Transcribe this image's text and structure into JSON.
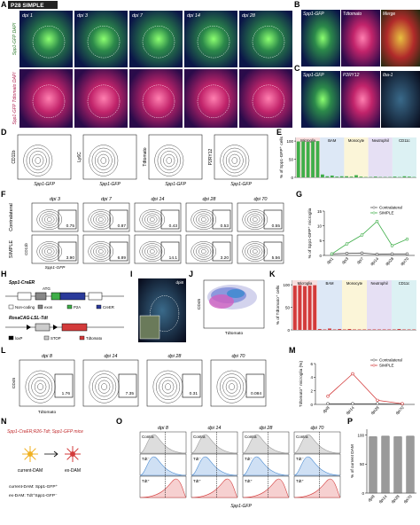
{
  "panels": {
    "A": {
      "label": "A",
      "title": "P28 SIMPLE",
      "columns": [
        "dpi 1",
        "dpi 3",
        "dpi 7",
        "dpi 14",
        "dpi 28"
      ],
      "rows": [
        "Spp1-GFP DAPI",
        "Spp1-GFP Tdtomato DAPI"
      ]
    },
    "B": {
      "label": "B",
      "channels": [
        "Spp1-GFP",
        "Tdtomato",
        "Merge"
      ]
    },
    "C": {
      "label": "C",
      "channels": [
        "Spp1-GFP",
        "P2RY12",
        "Iba-1"
      ]
    },
    "D": {
      "label": "D",
      "plots": [
        {
          "ylabel": "CD11b",
          "xlabel": "Spp1-GFP"
        },
        {
          "ylabel": "Ly6C",
          "xlabel": "Spp1-GFP"
        },
        {
          "ylabel": "Tdtomato",
          "xlabel": "Spp1-GFP"
        },
        {
          "ylabel": "P2RY12",
          "xlabel": "Spp1-GFP"
        }
      ]
    },
    "E": {
      "label": "E",
      "type": "grouped_bar",
      "ylabel": "% of Spp1-GFP⁺ cells",
      "ylim": [
        0,
        110
      ],
      "yticks": [
        0,
        50,
        100
      ],
      "bar_color": "#3fae49",
      "groups": [
        {
          "name": "Microglia",
          "color": "#f7dede",
          "values": [
            99,
            99,
            98,
            99,
            100
          ]
        },
        {
          "name": "BAM",
          "color": "#dde8f6",
          "values": [
            8,
            3,
            5,
            2,
            3
          ]
        },
        {
          "name": "Monocyte",
          "color": "#fbf5d8",
          "values": [
            3,
            2,
            6,
            2,
            1
          ]
        },
        {
          "name": "Neutrophil",
          "color": "#e6e0f4",
          "values": [
            1,
            2,
            1,
            1,
            1
          ]
        },
        {
          "name": "CD11c",
          "color": "#dcf1f3",
          "values": [
            2,
            1,
            3,
            2,
            1
          ]
        }
      ]
    },
    "F": {
      "label": "F",
      "columns": [
        "dpi 3",
        "dpi 7",
        "dpi 14",
        "dpi 28",
        "dpi 70"
      ],
      "rows": [
        "Contralateral",
        "SIMPLE"
      ],
      "gates": [
        [
          "0.75",
          "0.87",
          "0.43",
          "0.53",
          "0.55"
        ],
        [
          "3.90",
          "6.89",
          "14.1",
          "3.20",
          "5.56"
        ]
      ],
      "ylabel": "CD11b",
      "xlabel": "Spp1-GFP"
    },
    "G": {
      "label": "G",
      "type": "line",
      "ylabel": "% of Spp1-GFP⁺ microglia",
      "categories": [
        "dpi1",
        "dpi3",
        "dpi7",
        "dpi14",
        "dpi28",
        "dpi70"
      ],
      "ylim": [
        0,
        15
      ],
      "yticks": [
        0,
        5,
        10,
        15
      ],
      "series": [
        {
          "name": "Contralateral",
          "color": "#555555",
          "values": [
            0.5,
            0.7,
            0.8,
            0.4,
            0.5,
            0.5
          ]
        },
        {
          "name": "SIMPLE",
          "color": "#3fae49",
          "values": [
            0.5,
            3.9,
            6.9,
            11.5,
            3.3,
            5.5
          ]
        }
      ]
    },
    "H": {
      "label": "H",
      "construct1": "Spp1-CreER",
      "atg": "ATG",
      "legend1": [
        "Non-coding",
        "exon",
        "P2A",
        "CreER"
      ],
      "construct2": "RosaCAG-LSL-Tdt",
      "legend2": [
        "loxP",
        "STOP",
        "Tdtomato"
      ]
    },
    "I": {
      "label": "I",
      "tag": "dpi8"
    },
    "J": {
      "label": "J",
      "ylabel": "CD45",
      "xlabel": "Tdtomato"
    },
    "K": {
      "label": "K",
      "type": "grouped_bar",
      "ylabel": "% of Tdtomato⁺ cells",
      "ylim": [
        0,
        110
      ],
      "yticks": [
        0,
        50,
        100
      ],
      "bar_color": "#d33b3b",
      "groups": [
        {
          "name": "Microglia",
          "color": "#f7dede",
          "values": [
            98,
            99,
            97,
            98,
            99
          ]
        },
        {
          "name": "BAM",
          "color": "#dde8f6",
          "values": [
            2,
            1,
            3,
            1,
            2
          ]
        },
        {
          "name": "Monocyte",
          "color": "#fbf5d8",
          "values": [
            1,
            2,
            1,
            1,
            1
          ]
        },
        {
          "name": "Neutrophil",
          "color": "#e6e0f4",
          "values": [
            1,
            1,
            1,
            1,
            1
          ]
        },
        {
          "name": "CD11c",
          "color": "#dcf1f3",
          "values": [
            1,
            2,
            1,
            1,
            1
          ]
        }
      ]
    },
    "L": {
      "label": "L",
      "columns": [
        "dpi 8",
        "dpi 14",
        "dpi 28",
        "dpi 70"
      ],
      "gates": [
        "1.76",
        "7.35",
        "0.31",
        "0.084"
      ],
      "ylabel": "CD45",
      "xlabel": "Tdtomato"
    },
    "M": {
      "label": "M",
      "type": "line",
      "ylabel": "Tdtomato⁺ microglia (%)",
      "categories": [
        "dpi8",
        "dpi14",
        "dpi28",
        "dpi70"
      ],
      "ylim": [
        0,
        6
      ],
      "yticks": [
        0,
        2,
        4,
        6
      ],
      "series": [
        {
          "name": "Contralateral",
          "color": "#555555",
          "values": [
            0.1,
            0.1,
            0.1,
            0.05
          ]
        },
        {
          "name": "SIMPLE",
          "color": "#d33b3b",
          "values": [
            1.2,
            4.5,
            0.6,
            0.1
          ]
        }
      ]
    },
    "N": {
      "label": "N",
      "title": "Spp1-CreER;R26-Tdt; Spp1-GFP mice",
      "cells": [
        "current-DAM",
        "ex-DAM"
      ],
      "definitions": [
        "current-DAM: Spp1-GFP⁺",
        "ex-DAM: Tdt⁺Spp1-GFP⁻"
      ]
    },
    "O": {
      "label": "O",
      "columns": [
        "dpi 8",
        "dpi 14",
        "dpi 28",
        "dpi 70"
      ],
      "rows": [
        "Contra",
        "Tdt⁻",
        "Tdt⁺"
      ],
      "xlabel": "Spp1-GFP"
    },
    "P": {
      "label": "P",
      "type": "bar",
      "ylabel": "% of current DAM",
      "categories": [
        "dpi8",
        "dpi14",
        "dpi28",
        "dpi70"
      ],
      "values": [
        97,
        98,
        97,
        98
      ],
      "color": "#9a9a9a",
      "ylim": [
        0,
        110
      ],
      "yticks": [
        0,
        50,
        100
      ]
    }
  }
}
